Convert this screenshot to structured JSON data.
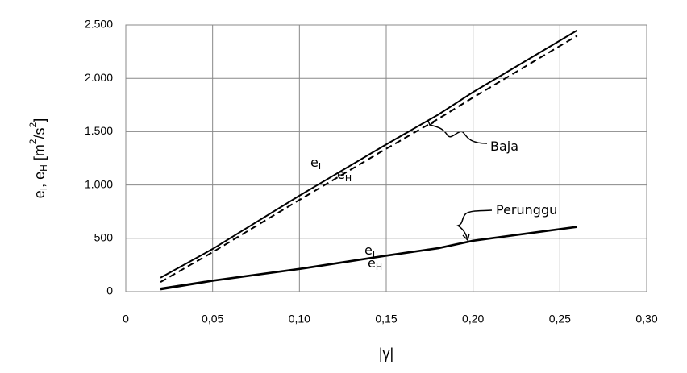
{
  "chart_data": {
    "type": "line",
    "ylabel": [
      "e",
      "I",
      ", e",
      "H",
      " [m",
      "2",
      "/s",
      "2",
      "]"
    ],
    "xlabel": "|γ|",
    "x": [
      0.02,
      0.05,
      0.1,
      0.15,
      0.18,
      0.2,
      0.26
    ],
    "series": [
      {
        "color": "#000000",
        "dash": false,
        "values": [
          130,
          400,
          900,
          1380,
          1660,
          1870,
          2450
        ]
      },
      {
        "color": "#000000",
        "dash": true,
        "values": [
          90,
          370,
          860,
          1340,
          1620,
          1820,
          2400
        ]
      },
      {
        "color": "#000000",
        "dash": false,
        "values": [
          30,
          105,
          215,
          340,
          410,
          480,
          610
        ]
      },
      {
        "color": "#000000",
        "dash": false,
        "values": [
          20,
          100,
          210,
          335,
          405,
          475,
          605
        ]
      }
    ],
    "xlim": [
      0,
      0.3
    ],
    "xticks": [
      0,
      {
        "value": 0.05,
        "label": "0,05"
      },
      {
        "value": 0.1,
        "label": "0,10"
      },
      {
        "value": 0.15,
        "label": "0,15"
      },
      {
        "value": 0.2,
        "label": "0,20"
      },
      {
        "value": 0.25,
        "label": "0,25"
      },
      {
        "value": 0.3,
        "label": "0,30"
      }
    ],
    "ylim": [
      0,
      2500
    ],
    "yticks": [
      0,
      500,
      {
        "value": 1000,
        "label": "1.000"
      },
      {
        "value": 1500,
        "label": "1.500"
      },
      {
        "value": 2000,
        "label": "2.000"
      },
      {
        "value": 2500,
        "label": "2.500"
      }
    ],
    "grid": true,
    "annotations": [
      {
        "text": "Baja"
      },
      {
        "text": "Perunggu"
      },
      {
        "text": "e",
        "sub": "I"
      },
      {
        "text": "e",
        "sub": "H"
      },
      {
        "text": "e",
        "sub": "I"
      },
      {
        "text": "e",
        "sub": "H"
      }
    ]
  }
}
